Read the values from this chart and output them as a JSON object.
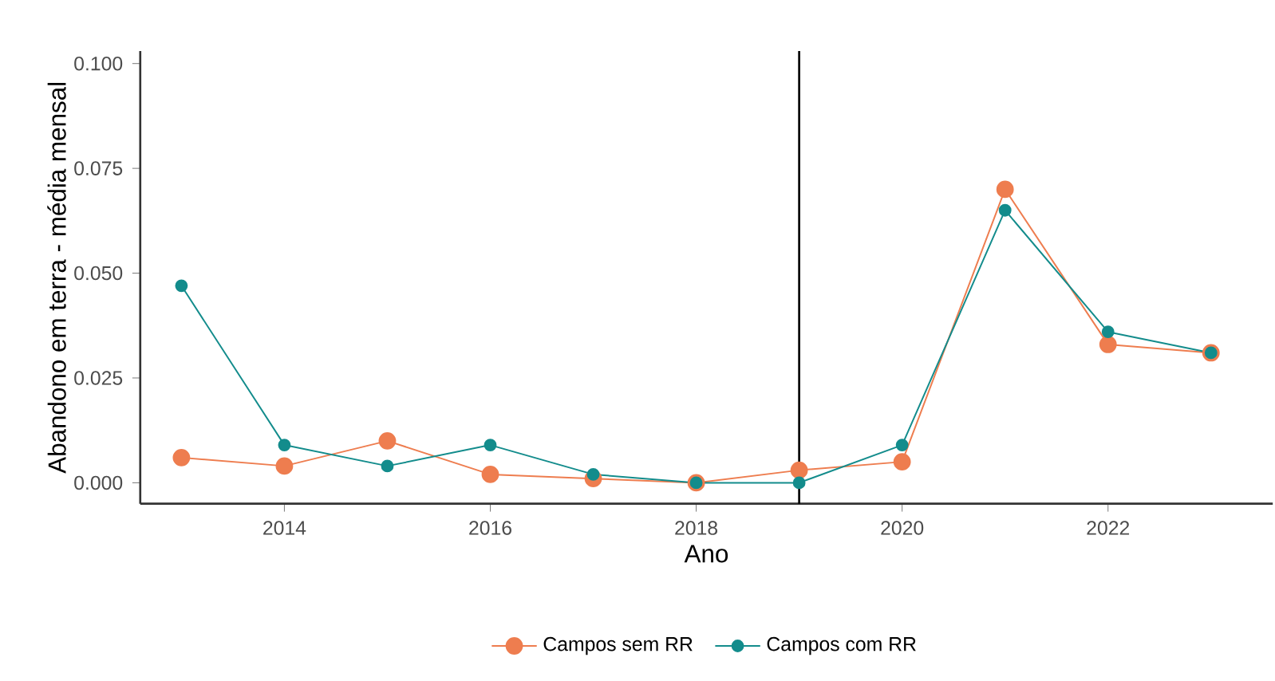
{
  "chart_data": {
    "type": "line",
    "xlabel": "Ano",
    "ylabel": "Abandono em terra - média mensal",
    "x": [
      2013,
      2014,
      2015,
      2016,
      2017,
      2018,
      2019,
      2020,
      2021,
      2022,
      2023
    ],
    "series": [
      {
        "name": "Campos sem RR",
        "color": "#ee7d4f",
        "values": [
          0.006,
          0.004,
          0.01,
          0.002,
          0.001,
          0.0,
          0.003,
          0.005,
          0.07,
          0.033,
          0.031
        ]
      },
      {
        "name": "Campos com RR",
        "color": "#138c8c",
        "values": [
          0.047,
          0.009,
          0.004,
          0.009,
          0.002,
          0.0,
          0.0,
          0.009,
          0.065,
          0.036,
          0.031
        ]
      }
    ],
    "xlim": [
      2012.6,
      2023.6
    ],
    "ylim": [
      -0.005,
      0.103
    ],
    "xticks": [
      2014,
      2016,
      2018,
      2020,
      2022
    ],
    "yticks": [
      {
        "value": 0,
        "label": "0.000"
      },
      {
        "value": 0.025,
        "label": "0.025"
      },
      {
        "value": 0.05,
        "label": "0.050"
      },
      {
        "value": 0.075,
        "label": "0.075"
      },
      {
        "value": 0.1,
        "label": "0.100"
      }
    ],
    "ref_lines": [
      {
        "axis": "x",
        "value": 2019,
        "color": "#000000"
      }
    ],
    "grid": false,
    "legend": "bottom",
    "marker": "circle",
    "line_style": "solid"
  }
}
